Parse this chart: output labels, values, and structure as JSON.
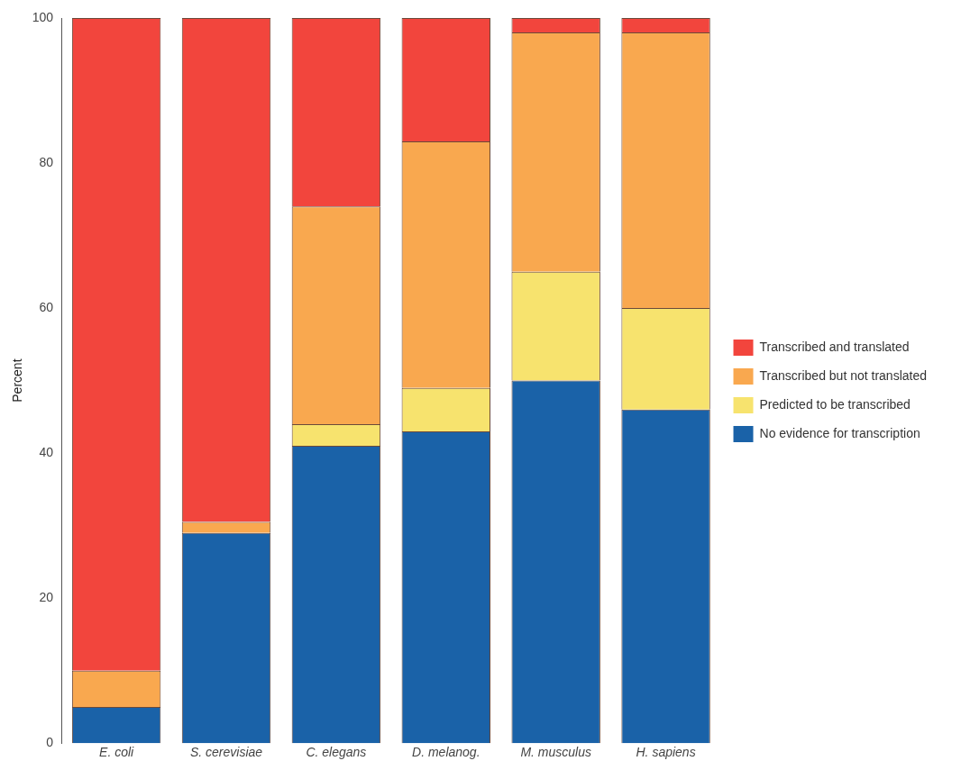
{
  "chart_data": {
    "type": "bar",
    "ylabel": "Percent",
    "stacked": true,
    "legend": "right",
    "grid": false,
    "categories": [
      "E. coli",
      "S. cerevisiae",
      "C. elegans",
      "D. melanog.",
      "M. musculus",
      "H. sapiens"
    ],
    "ylim": [
      0,
      100
    ],
    "yticks": [
      0,
      20,
      40,
      60,
      80,
      100
    ],
    "series": [
      {
        "name": "No evidence for transcription",
        "color": "#1a62a8",
        "values": [
          5,
          29,
          41,
          43,
          50,
          46
        ]
      },
      {
        "name": "Predicted to be transcribed",
        "color": "#f7e36e",
        "values": [
          0,
          0,
          3,
          6,
          15,
          14
        ]
      },
      {
        "name": "Transcribed but not translated",
        "color": "#f9a84f",
        "values": [
          5,
          1.5,
          30,
          34,
          33,
          38
        ]
      },
      {
        "name": "Transcribed and translated",
        "color": "#f2453d",
        "values": [
          90,
          69.5,
          26,
          17,
          2,
          2
        ]
      }
    ]
  }
}
